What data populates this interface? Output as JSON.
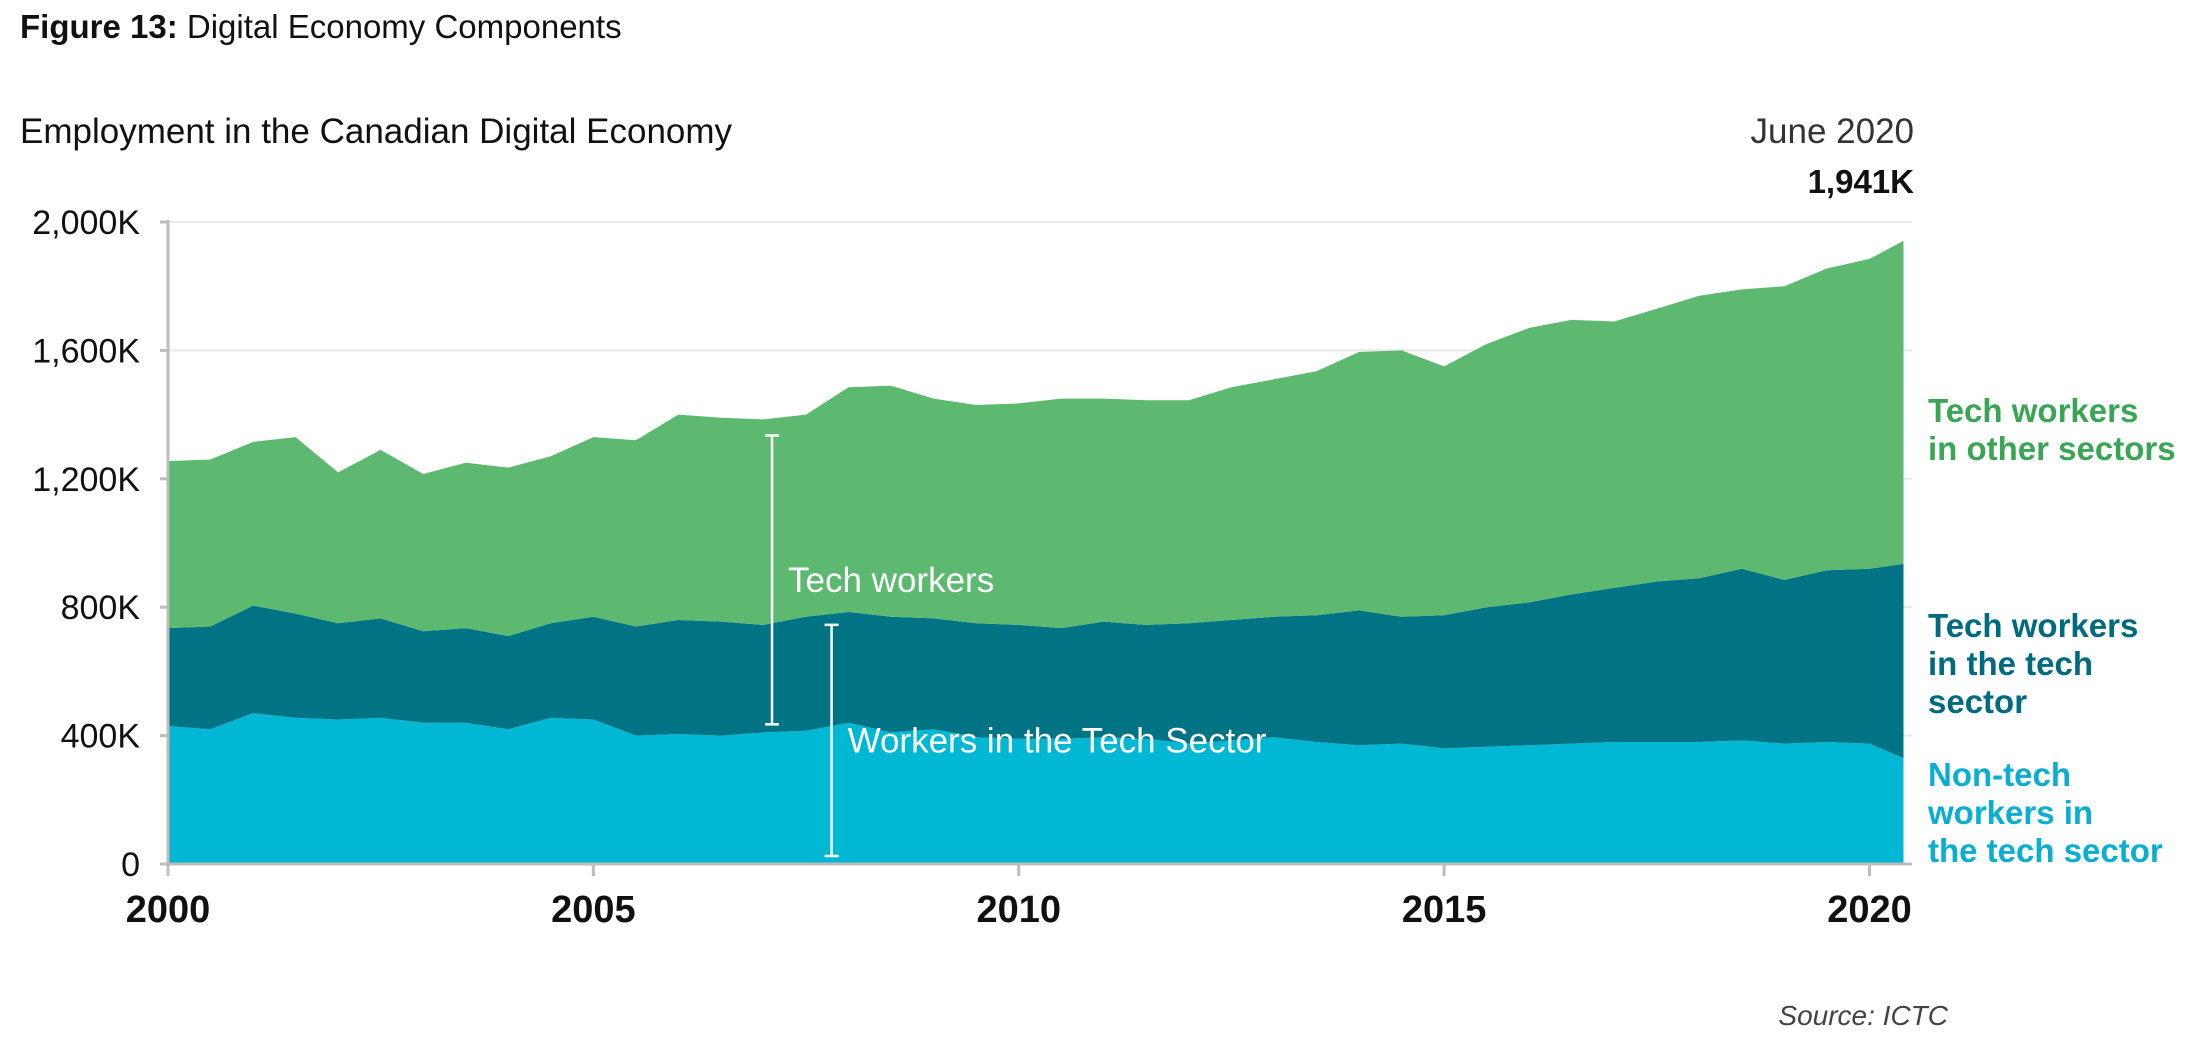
{
  "figure": {
    "label_prefix": "Figure 13:",
    "label_text": " Digital Economy Components"
  },
  "source": "Source: ICTC",
  "chart_data": {
    "type": "area",
    "stacked": true,
    "title": "Employment in the Canadian Digital Economy",
    "xlabel": "",
    "ylabel": "",
    "xlim": [
      2000,
      2020.5
    ],
    "ylim": [
      0,
      2000
    ],
    "x_ticks": [
      2000,
      2005,
      2010,
      2015,
      2020
    ],
    "y_ticks": [
      0,
      400,
      800,
      1200,
      1600,
      2000
    ],
    "y_tick_labels": [
      "0",
      "400K",
      "800K",
      "1,200K",
      "1,600K",
      "2,000K"
    ],
    "grid": "horizontal",
    "annotation": {
      "date": "June 2020",
      "value": "1,941K",
      "x": 2020.4,
      "y": 1941
    },
    "brackets": [
      {
        "label": "Tech workers",
        "x": 2007.1,
        "y_range": [
          435,
          1335
        ]
      },
      {
        "label": "Workers in the Tech Sector",
        "x": 2007.8,
        "y_range": [
          25,
          745
        ]
      }
    ],
    "x": [
      2000.0,
      2000.5,
      2001.0,
      2001.5,
      2002.0,
      2002.5,
      2003.0,
      2003.5,
      2004.0,
      2004.5,
      2005.0,
      2005.5,
      2006.0,
      2006.5,
      2007.0,
      2007.5,
      2008.0,
      2008.5,
      2009.0,
      2009.5,
      2010.0,
      2010.5,
      2011.0,
      2011.5,
      2012.0,
      2012.5,
      2013.0,
      2013.5,
      2014.0,
      2014.5,
      2015.0,
      2015.5,
      2016.0,
      2016.5,
      2017.0,
      2017.5,
      2018.0,
      2018.5,
      2019.0,
      2019.5,
      2020.0,
      2020.4
    ],
    "series": [
      {
        "name": "Non-tech workers in the tech sector",
        "color": "#00b8d4",
        "values": [
          430,
          420,
          470,
          455,
          450,
          455,
          440,
          440,
          420,
          455,
          450,
          400,
          405,
          400,
          410,
          415,
          440,
          410,
          420,
          395,
          390,
          390,
          395,
          390,
          375,
          385,
          395,
          380,
          370,
          375,
          360,
          365,
          370,
          375,
          380,
          380,
          380,
          385,
          375,
          380,
          375,
          330
        ]
      },
      {
        "name": "Tech workers in the tech sector",
        "color": "#007385",
        "values": [
          305,
          320,
          335,
          325,
          300,
          310,
          285,
          295,
          290,
          295,
          320,
          340,
          355,
          355,
          335,
          355,
          345,
          360,
          345,
          355,
          355,
          345,
          360,
          355,
          375,
          375,
          375,
          395,
          420,
          395,
          415,
          435,
          445,
          465,
          480,
          500,
          510,
          535,
          510,
          535,
          545,
          605
        ]
      },
      {
        "name": "Tech workers in other sectors",
        "color": "#5cb96f",
        "values": [
          520,
          520,
          510,
          550,
          470,
          525,
          490,
          515,
          525,
          520,
          560,
          580,
          640,
          635,
          640,
          630,
          700,
          720,
          685,
          680,
          690,
          715,
          695,
          700,
          695,
          725,
          740,
          760,
          805,
          830,
          775,
          820,
          855,
          855,
          830,
          850,
          880,
          870,
          915,
          940,
          965,
          1006
        ]
      }
    ],
    "legend": [
      {
        "label": "Tech workers in other sectors",
        "lines": [
          "Tech workers",
          "in other sectors"
        ],
        "color": "#3aa655"
      },
      {
        "label": "Tech workers in the tech sector",
        "lines": [
          "Tech workers",
          "in the tech",
          "sector"
        ],
        "color": "#006a7e"
      },
      {
        "label": "Non-tech workers in the tech sector",
        "lines": [
          "Non-tech",
          "workers in",
          "the tech sector"
        ],
        "color": "#0aaed0"
      }
    ]
  }
}
